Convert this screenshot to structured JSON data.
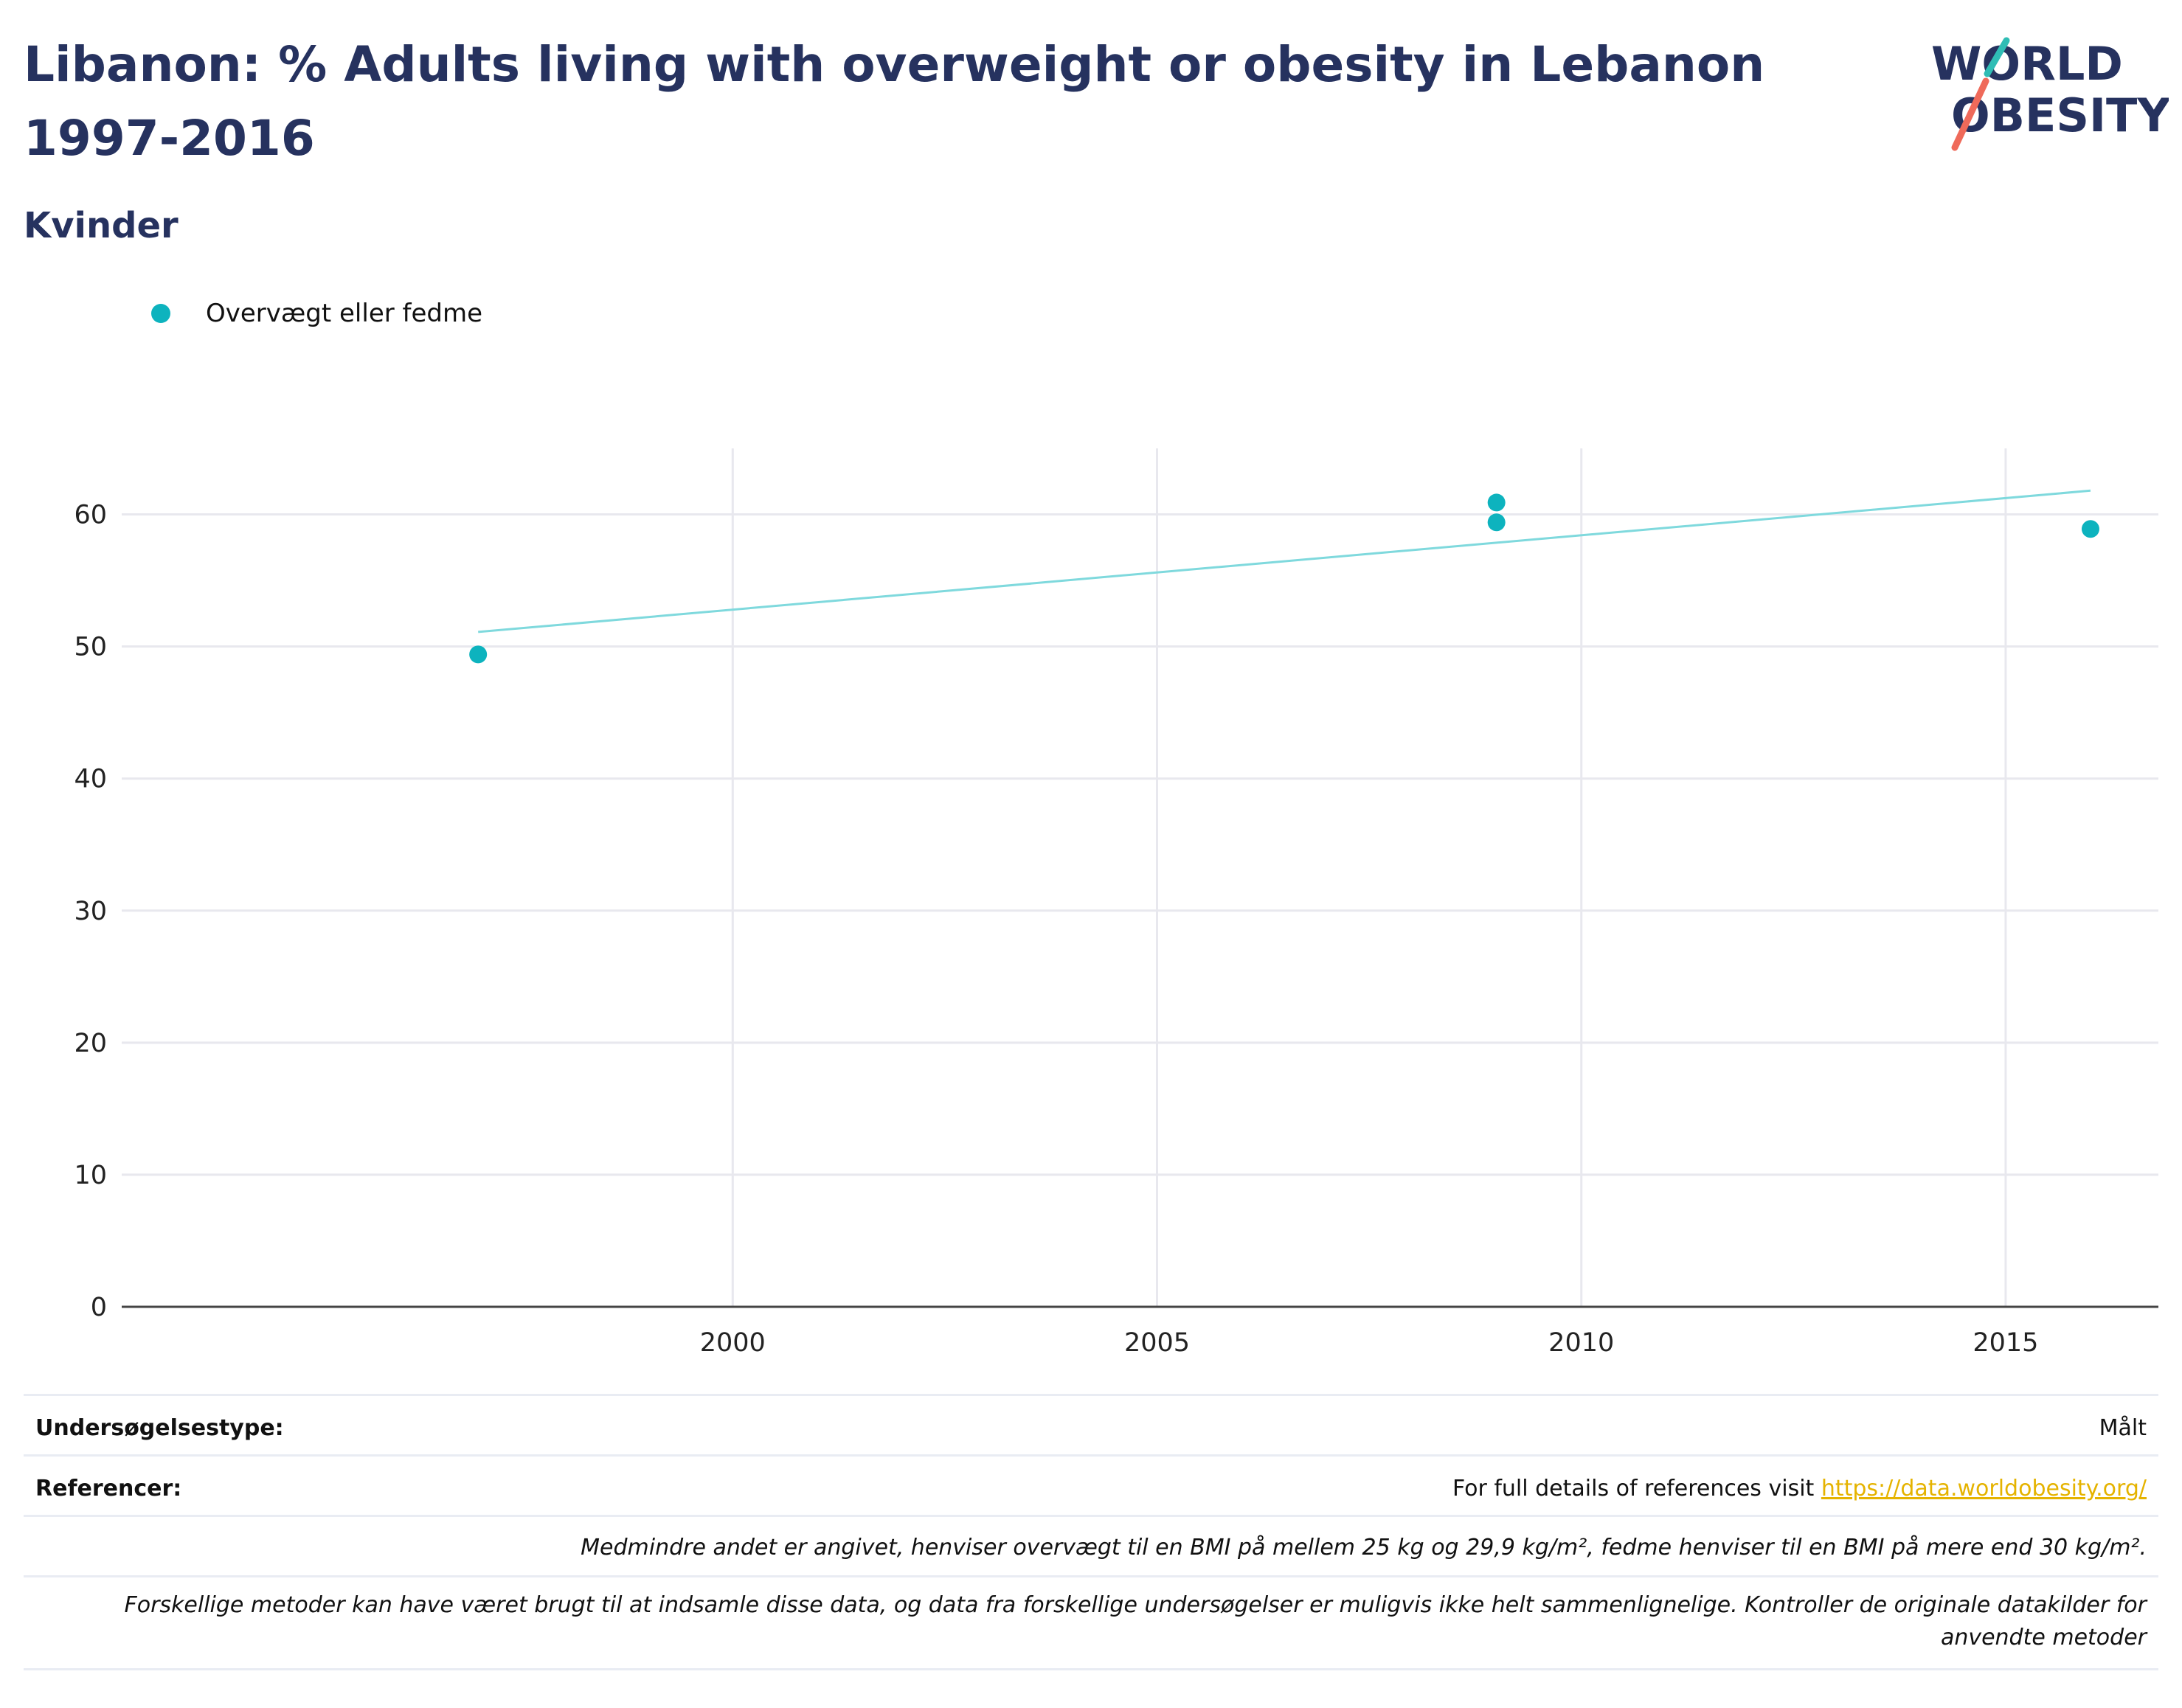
{
  "title": "Libanon: % Adults living with overweight or obesity in Lebanon 1997-2016",
  "subtitle": "Kvinder",
  "logo": {
    "line1": "WORLD",
    "line2": "OBESITY"
  },
  "legend": {
    "label": "Overvægt eller fedme",
    "color": "#0db3be"
  },
  "chart_data": {
    "type": "scatter",
    "series": [
      {
        "name": "Overvægt eller fedme",
        "color": "#0db3be",
        "points": [
          {
            "x": 1997,
            "y": 49.4
          },
          {
            "x": 2009,
            "y": 60.9
          },
          {
            "x": 2009,
            "y": 59.4
          },
          {
            "x": 2016,
            "y": 58.9
          }
        ]
      }
    ],
    "trendline": {
      "color": "#7fd9dd",
      "x": [
        1997,
        2016
      ],
      "y": [
        51.1,
        61.8
      ]
    },
    "xticks": [
      2000,
      2005,
      2010,
      2015
    ],
    "yticks": [
      0,
      10,
      20,
      30,
      40,
      50,
      60
    ],
    "xlim": [
      1992.8,
      2016.8
    ],
    "ylim": [
      0,
      65
    ],
    "grid": true,
    "legend_position": "top-left"
  },
  "meta": {
    "survey_type_label": "Undersøgelsestype:",
    "survey_type_value": "Målt",
    "references_label": "Referencer:",
    "references_text": "For full details of references visit ",
    "references_link": "https://data.worldobesity.org/",
    "note_bmi": "Medmindre andet er angivet, henviser overvægt til en BMI på mellem 25 kg og 29,9 kg/m², fedme henviser til en BMI på mere end 30 kg/m².",
    "note_methods_line1": "Forskellige metoder kan have været brugt til at indsamle disse data, og data fra forskellige undersøgelser er muligvis ikke helt sammenlignelige. Kontroller de originale datakilder for",
    "note_methods_line2": "anvendte metoder"
  }
}
